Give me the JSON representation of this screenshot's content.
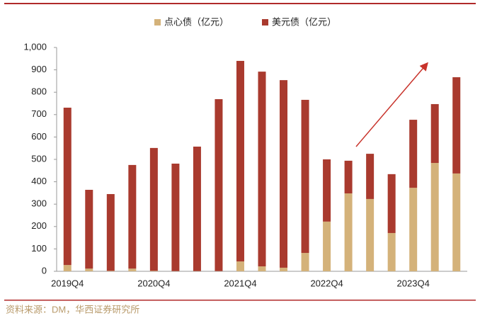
{
  "chart_data": {
    "type": "stacked_bar",
    "categories": [
      "2019Q4",
      null,
      null,
      null,
      "2020Q4",
      null,
      null,
      null,
      "2021Q4",
      null,
      null,
      null,
      "2022Q4",
      null,
      null,
      null,
      "2023Q4",
      null,
      null
    ],
    "series": [
      {
        "name": "点心债（亿元）",
        "color": "#d4b27a",
        "values": [
          28,
          12,
          2,
          12,
          2,
          1,
          1,
          1,
          44,
          22,
          16,
          82,
          222,
          348,
          323,
          171,
          373,
          484,
          437
        ]
      },
      {
        "name": "美元债（亿元）",
        "color": "#a93a2e",
        "values": [
          703,
          352,
          343,
          463,
          549,
          480,
          556,
          768,
          896,
          870,
          838,
          684,
          278,
          146,
          202,
          263,
          304,
          263,
          430
        ]
      }
    ],
    "ylim": [
      0,
      1000
    ],
    "yticks": [
      0,
      100,
      200,
      300,
      400,
      500,
      600,
      700,
      800,
      900,
      {
        "value": 1000,
        "label": "1,000"
      }
    ],
    "legend": "top",
    "source": "资料来源：DM，华西证券研究所"
  }
}
